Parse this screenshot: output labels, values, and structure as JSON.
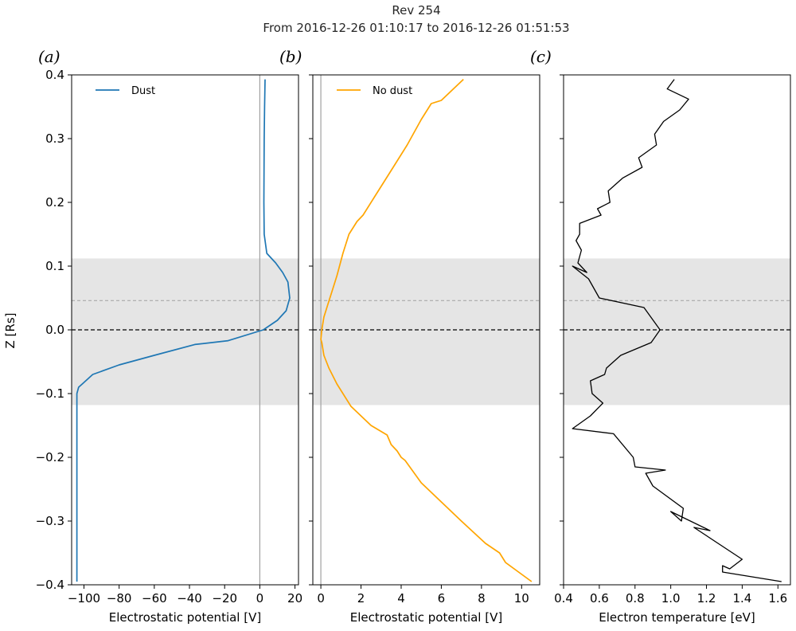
{
  "figure": {
    "title_line1": "Rev 254",
    "title_line2": "From 2016-12-26 01:10:17 to 2016-12-26 01:51:53"
  },
  "shared": {
    "ylabel": "Z [Rs]",
    "ylim": [
      -0.4,
      0.4
    ],
    "yticks": [
      0.4,
      0.3,
      0.2,
      0.1,
      0.0,
      -0.1,
      -0.2,
      -0.3,
      -0.4
    ],
    "ytick_labels": [
      "0.4",
      "0.3",
      "0.2",
      "0.1",
      "0.0",
      "−0.1",
      "−0.2",
      "−0.3",
      "−0.4"
    ],
    "shaded_band": [
      -0.118,
      0.112
    ],
    "shaded_color": "#e5e5e5",
    "equator_z": 0.0,
    "secondary_z": 0.046
  },
  "chart_data": [
    {
      "type": "line",
      "panel": "(a)",
      "xlabel": "Electrostatic potential [V]",
      "xlim": [
        -107,
        22
      ],
      "xticks": [
        -100,
        -80,
        -60,
        -40,
        -20,
        0,
        20
      ],
      "xtick_labels": [
        "−100",
        "−80",
        "−60",
        "−40",
        "−20",
        "0",
        "20"
      ],
      "vline": 0,
      "grid": false,
      "legend_position": "top-left",
      "series": [
        {
          "name": "Dust",
          "color": "#1f77b4",
          "x": [
            3,
            2.7,
            2.5,
            2.4,
            2.3,
            2.5,
            4,
            9,
            13,
            16,
            17,
            15,
            10,
            2,
            -18,
            -37,
            -60,
            -80,
            -95,
            -101,
            -103,
            -104,
            -104,
            -104,
            -104,
            -104,
            -104,
            -104,
            -104
          ],
          "y": [
            0.393,
            0.35,
            0.3,
            0.25,
            0.2,
            0.15,
            0.12,
            0.105,
            0.09,
            0.075,
            0.05,
            0.03,
            0.015,
            0.0,
            -0.017,
            -0.023,
            -0.04,
            -0.055,
            -0.07,
            -0.085,
            -0.09,
            -0.1,
            -0.15,
            -0.2,
            -0.25,
            -0.3,
            -0.35,
            -0.38,
            -0.395
          ]
        }
      ]
    },
    {
      "type": "line",
      "panel": "(b)",
      "xlabel": "Electrostatic potential [V]",
      "xlim": [
        -0.4,
        10.9
      ],
      "xticks": [
        0,
        2,
        4,
        6,
        8,
        10
      ],
      "xtick_labels": [
        "0",
        "2",
        "4",
        "6",
        "8",
        "10"
      ],
      "vline": 0,
      "grid": false,
      "legend_position": "top-left",
      "series": [
        {
          "name": "No dust",
          "color": "#ffa500",
          "x": [
            7.1,
            6,
            5.5,
            5,
            4.3,
            3.5,
            2.7,
            2.1,
            1.8,
            1.4,
            1.1,
            0.8,
            0.55,
            0.35,
            0.15,
            0.05,
            0.0,
            0.05,
            0.15,
            0.4,
            0.8,
            1.5,
            2.5,
            3.3,
            3.5,
            3.8,
            4.0,
            4.2,
            5.0,
            6.0,
            7.0,
            8.2,
            8.9,
            9.2,
            10.5
          ],
          "y": [
            0.393,
            0.36,
            0.355,
            0.33,
            0.29,
            0.25,
            0.21,
            0.18,
            0.17,
            0.15,
            0.12,
            0.085,
            0.06,
            0.04,
            0.02,
            0.0,
            -0.015,
            -0.02,
            -0.04,
            -0.06,
            -0.085,
            -0.12,
            -0.15,
            -0.165,
            -0.18,
            -0.19,
            -0.2,
            -0.205,
            -0.24,
            -0.27,
            -0.3,
            -0.335,
            -0.35,
            -0.365,
            -0.395
          ]
        }
      ]
    },
    {
      "type": "line",
      "panel": "(c)",
      "xlabel": "Electron temperature [eV]",
      "xlim": [
        0.4,
        1.67
      ],
      "xticks": [
        0.4,
        0.6,
        0.8,
        1.0,
        1.2,
        1.4,
        1.6
      ],
      "xtick_labels": [
        "0.4",
        "0.6",
        "0.8",
        "1.0",
        "1.2",
        "1.4",
        "1.6"
      ],
      "grid": false,
      "series": [
        {
          "name": "",
          "color": "#000000",
          "x": [
            1.02,
            0.98,
            1.1,
            1.05,
            0.96,
            0.91,
            0.92,
            0.82,
            0.84,
            0.73,
            0.65,
            0.66,
            0.59,
            0.61,
            0.49,
            0.49,
            0.47,
            0.5,
            0.48,
            0.53,
            0.45,
            0.54,
            0.6,
            0.85,
            0.94,
            0.89,
            0.72,
            0.64,
            0.63,
            0.55,
            0.56,
            0.62,
            0.55,
            0.45,
            0.68,
            0.79,
            0.8,
            0.97,
            0.86,
            0.9,
            1.07,
            1.06,
            1.0,
            1.22,
            1.13,
            1.4,
            1.33,
            1.29,
            1.29,
            1.62
          ],
          "y": [
            0.393,
            0.378,
            0.362,
            0.345,
            0.327,
            0.307,
            0.29,
            0.27,
            0.255,
            0.238,
            0.218,
            0.2,
            0.19,
            0.18,
            0.167,
            0.15,
            0.14,
            0.125,
            0.105,
            0.09,
            0.1,
            0.08,
            0.05,
            0.035,
            0.0,
            -0.02,
            -0.04,
            -0.06,
            -0.07,
            -0.08,
            -0.1,
            -0.115,
            -0.135,
            -0.155,
            -0.163,
            -0.2,
            -0.215,
            -0.22,
            -0.225,
            -0.245,
            -0.28,
            -0.3,
            -0.285,
            -0.315,
            -0.31,
            -0.36,
            -0.375,
            -0.37,
            -0.38,
            -0.395
          ]
        }
      ]
    }
  ]
}
